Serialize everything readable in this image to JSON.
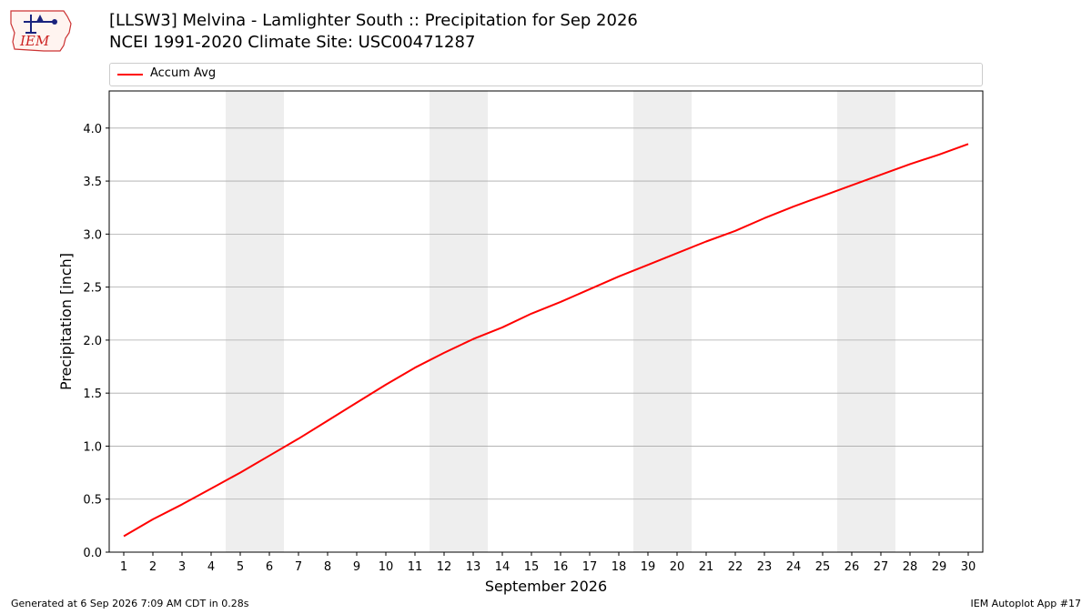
{
  "header": {
    "title_line1": "[LLSW3] Melvina - Lamlighter South :: Precipitation for Sep 2026",
    "title_line2": "NCEI 1991-2020 Climate Site: USC00471287"
  },
  "logo": {
    "text": "IEM"
  },
  "footer": {
    "left": "Generated at 6 Sep 2026 7:09 AM CDT in 0.28s",
    "right": "IEM Autoplot App #17"
  },
  "colors": {
    "line": "#ff0000",
    "weekend_band": "#eeeeee",
    "grid": "#aaaaaa"
  },
  "chart_data": {
    "type": "line",
    "xlabel": "September 2026",
    "ylabel": "Precipitation [inch]",
    "xlim": [
      0.5,
      30.5
    ],
    "ylim": [
      0,
      4.35
    ],
    "x_ticks": [
      1,
      2,
      3,
      4,
      5,
      6,
      7,
      8,
      9,
      10,
      11,
      12,
      13,
      14,
      15,
      16,
      17,
      18,
      19,
      20,
      21,
      22,
      23,
      24,
      25,
      26,
      27,
      28,
      29,
      30
    ],
    "y_ticks": [
      "0.0",
      "0.5",
      "1.0",
      "1.5",
      "2.0",
      "2.5",
      "3.0",
      "3.5",
      "4.0"
    ],
    "grid": "horizontal",
    "legend_position": "top",
    "weekend_bands": [
      [
        4.5,
        6.5
      ],
      [
        11.5,
        13.5
      ],
      [
        18.5,
        20.5
      ],
      [
        25.5,
        27.5
      ]
    ],
    "series": [
      {
        "name": "Accum Avg",
        "color": "#ff0000",
        "x": [
          1,
          2,
          3,
          4,
          5,
          6,
          7,
          8,
          9,
          10,
          11,
          12,
          13,
          14,
          15,
          16,
          17,
          18,
          19,
          20,
          21,
          22,
          23,
          24,
          25,
          26,
          27,
          28,
          29,
          30
        ],
        "values": [
          0.15,
          0.31,
          0.45,
          0.6,
          0.75,
          0.91,
          1.07,
          1.24,
          1.41,
          1.58,
          1.74,
          1.88,
          2.01,
          2.12,
          2.25,
          2.36,
          2.48,
          2.6,
          2.71,
          2.82,
          2.93,
          3.03,
          3.15,
          3.26,
          3.36,
          3.46,
          3.56,
          3.66,
          3.75,
          3.85
        ]
      }
    ]
  }
}
